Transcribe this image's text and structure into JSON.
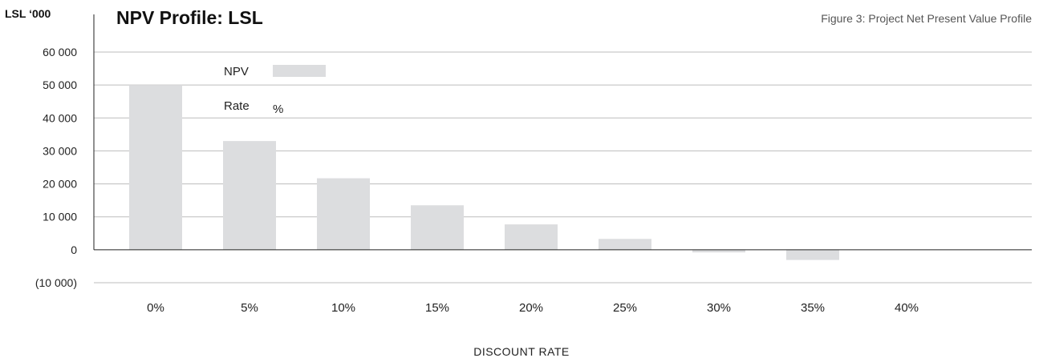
{
  "chart_data": {
    "type": "bar",
    "title": "NPV Profile: LSL",
    "unit_label": "LSL ‘000",
    "caption": "Figure 3: Project Net Present Value Profile",
    "xlabel": "DISCOUNT RATE",
    "ylabel": "",
    "categories": [
      "0%",
      "5%",
      "10%",
      "15%",
      "20%",
      "25%",
      "30%",
      "35%",
      "40%"
    ],
    "series": [
      {
        "name": "NPV",
        "values": [
          50000,
          33000,
          21700,
          13500,
          7700,
          3300,
          -800,
          -3100,
          0
        ]
      }
    ],
    "legend": {
      "entries": [
        "NPV",
        "Rate"
      ],
      "rate_symbol": "%",
      "placement": "top-left"
    },
    "ylim": [
      -10000,
      60000
    ],
    "yticks": [
      60000,
      50000,
      40000,
      30000,
      20000,
      10000,
      0,
      -10000
    ],
    "ytick_labels": [
      "60 000",
      "50 000",
      "40 000",
      "30 000",
      "20 000",
      "10 000",
      "0",
      "(10 000)"
    ],
    "grid": true,
    "colors": {
      "bar": "#dcdddf",
      "grid": "#bdbdbd",
      "axis": "#222222"
    }
  }
}
